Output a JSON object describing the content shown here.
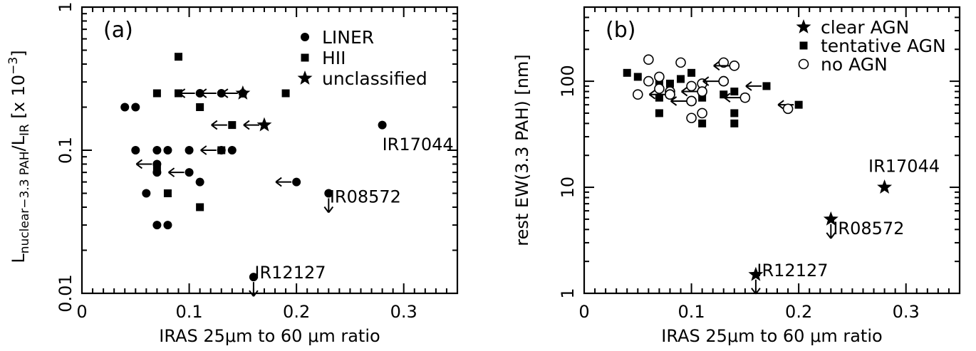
{
  "chart_data": [
    {
      "type": "scatter",
      "panel_label": "(a)",
      "xlabel": "IRAS 25μm to 60 μm ratio",
      "ylabel": {
        "main": "L",
        "sub1": "nuclear−3.3 PAH",
        "mid": "/L",
        "sub2": "IR",
        "tail": " [x 10",
        "sup": "−3",
        "end": "]"
      },
      "xlim": [
        0,
        0.35
      ],
      "ylim": [
        0.01,
        1
      ],
      "yscale": "log",
      "xticks": [
        {
          "v": 0,
          "label": "0"
        },
        {
          "v": 0.1,
          "label": "0.1"
        },
        {
          "v": 0.2,
          "label": "0.2"
        },
        {
          "v": 0.3,
          "label": "0.3"
        }
      ],
      "yticks": [
        {
          "v": 0.01,
          "label": "0.01"
        },
        {
          "v": 0.1,
          "label": "0.1"
        },
        {
          "v": 1,
          "label": "1"
        }
      ],
      "legend_position": "top-right",
      "legend": [
        {
          "marker": "circle-filled",
          "label": "LINER"
        },
        {
          "marker": "square-filled",
          "label": "HII"
        },
        {
          "marker": "star-filled",
          "label": "unclassified"
        }
      ],
      "series": [
        {
          "name": "LINER",
          "marker": "circle-filled",
          "points": [
            {
              "x": 0.04,
              "y": 0.2
            },
            {
              "x": 0.05,
              "y": 0.2
            },
            {
              "x": 0.05,
              "y": 0.1
            },
            {
              "x": 0.06,
              "y": 0.05
            },
            {
              "x": 0.07,
              "y": 0.1
            },
            {
              "x": 0.07,
              "y": 0.07
            },
            {
              "x": 0.07,
              "y": 0.03
            },
            {
              "x": 0.08,
              "y": 0.1
            },
            {
              "x": 0.08,
              "y": 0.03
            },
            {
              "x": 0.07,
              "y": 0.08,
              "limit": "left"
            },
            {
              "x": 0.1,
              "y": 0.1
            },
            {
              "x": 0.1,
              "y": 0.07,
              "limit": "left"
            },
            {
              "x": 0.11,
              "y": 0.06
            },
            {
              "x": 0.11,
              "y": 0.25,
              "limit": "left"
            },
            {
              "x": 0.13,
              "y": 0.25,
              "limit": "left"
            },
            {
              "x": 0.13,
              "y": 0.1,
              "limit": "left"
            },
            {
              "x": 0.14,
              "y": 0.1
            },
            {
              "x": 0.15,
              "y": 0.25,
              "limit": "left"
            },
            {
              "x": 0.2,
              "y": 0.06,
              "limit": "left"
            },
            {
              "x": 0.28,
              "y": 0.15
            },
            {
              "x": 0.23,
              "y": 0.05,
              "limit": "down"
            },
            {
              "x": 0.16,
              "y": 0.013,
              "limit": "down"
            }
          ]
        },
        {
          "name": "HII",
          "marker": "square-filled",
          "points": [
            {
              "x": 0.07,
              "y": 0.25
            },
            {
              "x": 0.09,
              "y": 0.45
            },
            {
              "x": 0.09,
              "y": 0.25
            },
            {
              "x": 0.11,
              "y": 0.2
            },
            {
              "x": 0.07,
              "y": 0.075
            },
            {
              "x": 0.08,
              "y": 0.05
            },
            {
              "x": 0.11,
              "y": 0.04
            },
            {
              "x": 0.13,
              "y": 0.1
            },
            {
              "x": 0.14,
              "y": 0.15,
              "limit": "left"
            },
            {
              "x": 0.19,
              "y": 0.25
            }
          ]
        },
        {
          "name": "unclassified",
          "marker": "star-filled",
          "points": [
            {
              "x": 0.15,
              "y": 0.25
            },
            {
              "x": 0.17,
              "y": 0.15,
              "limit": "left"
            }
          ]
        }
      ],
      "annotations": [
        {
          "text": "IR17044",
          "x": 0.28,
          "y": 0.1
        },
        {
          "text": "IR08572",
          "x": 0.231,
          "y": 0.043
        },
        {
          "text": "IR12127",
          "x": 0.161,
          "y": 0.0127
        }
      ]
    },
    {
      "type": "scatter",
      "panel_label": "(b)",
      "xlabel": "IRAS 25μm to 60 μm ratio",
      "ylabel": {
        "text": "rest EW(3.3 PAH) [nm]"
      },
      "xlim": [
        0,
        0.35
      ],
      "ylim": [
        1,
        500
      ],
      "yscale": "log",
      "xticks": [
        {
          "v": 0,
          "label": "0"
        },
        {
          "v": 0.1,
          "label": "0.1"
        },
        {
          "v": 0.2,
          "label": "0.2"
        },
        {
          "v": 0.3,
          "label": "0.3"
        }
      ],
      "yticks": [
        {
          "v": 1,
          "label": "1"
        },
        {
          "v": 10,
          "label": "10"
        },
        {
          "v": 100,
          "label": "100"
        }
      ],
      "legend_position": "top-right",
      "legend": [
        {
          "marker": "star-filled",
          "label": "clear AGN"
        },
        {
          "marker": "square-filled",
          "label": "tentative AGN"
        },
        {
          "marker": "circle-open",
          "label": "no AGN"
        }
      ],
      "series": [
        {
          "name": "clear AGN",
          "marker": "star-filled",
          "points": [
            {
              "x": 0.28,
              "y": 10
            },
            {
              "x": 0.23,
              "y": 5,
              "limit": "down"
            },
            {
              "x": 0.16,
              "y": 1.5,
              "limit": "down"
            }
          ]
        },
        {
          "name": "tentative AGN",
          "marker": "square-filled",
          "points": [
            {
              "x": 0.04,
              "y": 120
            },
            {
              "x": 0.05,
              "y": 110
            },
            {
              "x": 0.07,
              "y": 95
            },
            {
              "x": 0.07,
              "y": 70
            },
            {
              "x": 0.07,
              "y": 50
            },
            {
              "x": 0.08,
              "y": 95
            },
            {
              "x": 0.08,
              "y": 75
            },
            {
              "x": 0.09,
              "y": 105
            },
            {
              "x": 0.1,
              "y": 120
            },
            {
              "x": 0.11,
              "y": 80
            },
            {
              "x": 0.11,
              "y": 70
            },
            {
              "x": 0.11,
              "y": 40
            },
            {
              "x": 0.13,
              "y": 75
            },
            {
              "x": 0.14,
              "y": 80
            },
            {
              "x": 0.14,
              "y": 50
            },
            {
              "x": 0.14,
              "y": 40
            },
            {
              "x": 0.15,
              "y": 70
            },
            {
              "x": 0.17,
              "y": 90,
              "limit": "left"
            },
            {
              "x": 0.2,
              "y": 60,
              "limit": "left"
            }
          ]
        },
        {
          "name": "no AGN",
          "marker": "circle-open",
          "points": [
            {
              "x": 0.05,
              "y": 75
            },
            {
              "x": 0.06,
              "y": 160
            },
            {
              "x": 0.06,
              "y": 100
            },
            {
              "x": 0.07,
              "y": 110
            },
            {
              "x": 0.07,
              "y": 85
            },
            {
              "x": 0.08,
              "y": 80
            },
            {
              "x": 0.08,
              "y": 75
            },
            {
              "x": 0.09,
              "y": 150
            },
            {
              "x": 0.1,
              "y": 90
            },
            {
              "x": 0.1,
              "y": 65
            },
            {
              "x": 0.1,
              "y": 45
            },
            {
              "x": 0.11,
              "y": 95
            },
            {
              "x": 0.11,
              "y": 50
            },
            {
              "x": 0.13,
              "y": 150
            },
            {
              "x": 0.13,
              "y": 100
            },
            {
              "x": 0.14,
              "y": 140,
              "limit": "left"
            },
            {
              "x": 0.19,
              "y": 55
            },
            {
              "x": 0.08,
              "y": 75,
              "limit": "left"
            },
            {
              "x": 0.1,
              "y": 65,
              "limit": "left"
            },
            {
              "x": 0.11,
              "y": 80,
              "limit": "left"
            },
            {
              "x": 0.13,
              "y": 100,
              "limit": "left"
            },
            {
              "x": 0.15,
              "y": 70,
              "limit": "left"
            }
          ]
        }
      ],
      "annotations": [
        {
          "text": "IR17044",
          "x": 0.265,
          "y": 14
        },
        {
          "text": "IR08572",
          "x": 0.232,
          "y": 3.6
        },
        {
          "text": "IR12127",
          "x": 0.161,
          "y": 1.45
        }
      ]
    }
  ]
}
